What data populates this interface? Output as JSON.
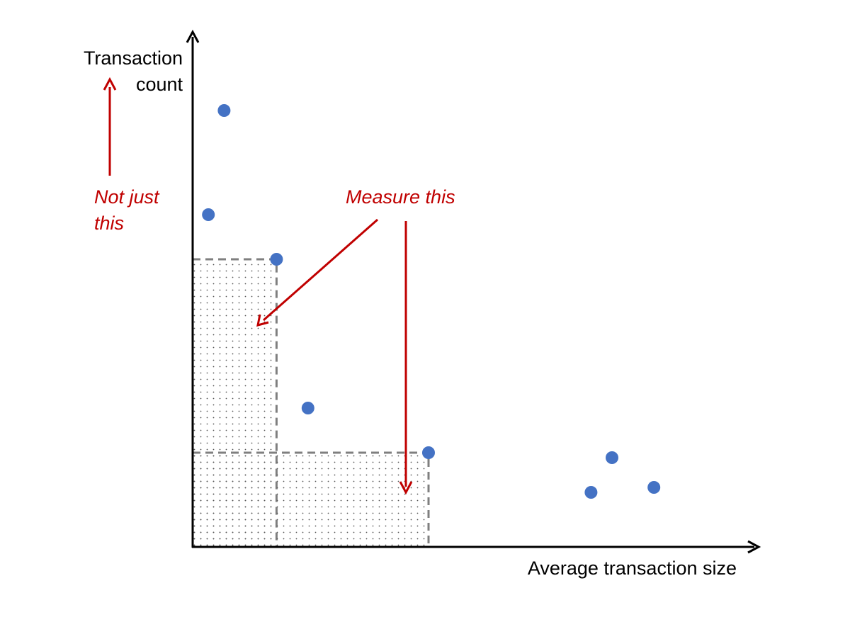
{
  "colors": {
    "point": "#4472C4",
    "annotation": "#C00000",
    "axis": "#000000",
    "region_border": "#7F7F7F",
    "region_dots": "#555555"
  },
  "labels": {
    "y_axis_line1": "Transaction",
    "y_axis_line2": "count",
    "x_axis": "Average transaction size",
    "not_just_line1": "Not just",
    "not_just_line2": "this",
    "measure": "Measure this"
  },
  "chart_data": {
    "type": "scatter",
    "xlabel": "Average transaction size",
    "ylabel": "Transaction count",
    "axis_ticks": false,
    "grid": false,
    "points": [
      {
        "x": 0.06,
        "y": 0.88
      },
      {
        "x": 0.03,
        "y": 0.67
      },
      {
        "x": 0.16,
        "y": 0.58
      },
      {
        "x": 0.22,
        "y": 0.28
      },
      {
        "x": 0.45,
        "y": 0.19
      },
      {
        "x": 0.8,
        "y": 0.18
      },
      {
        "x": 0.76,
        "y": 0.11
      },
      {
        "x": 0.88,
        "y": 0.12
      }
    ],
    "shaded_regions": [
      {
        "x_from": 0.0,
        "x_to": 0.16,
        "y_from": 0.0,
        "y_to": 0.58
      },
      {
        "x_from": 0.0,
        "x_to": 0.45,
        "y_from": 0.0,
        "y_to": 0.19
      }
    ]
  }
}
